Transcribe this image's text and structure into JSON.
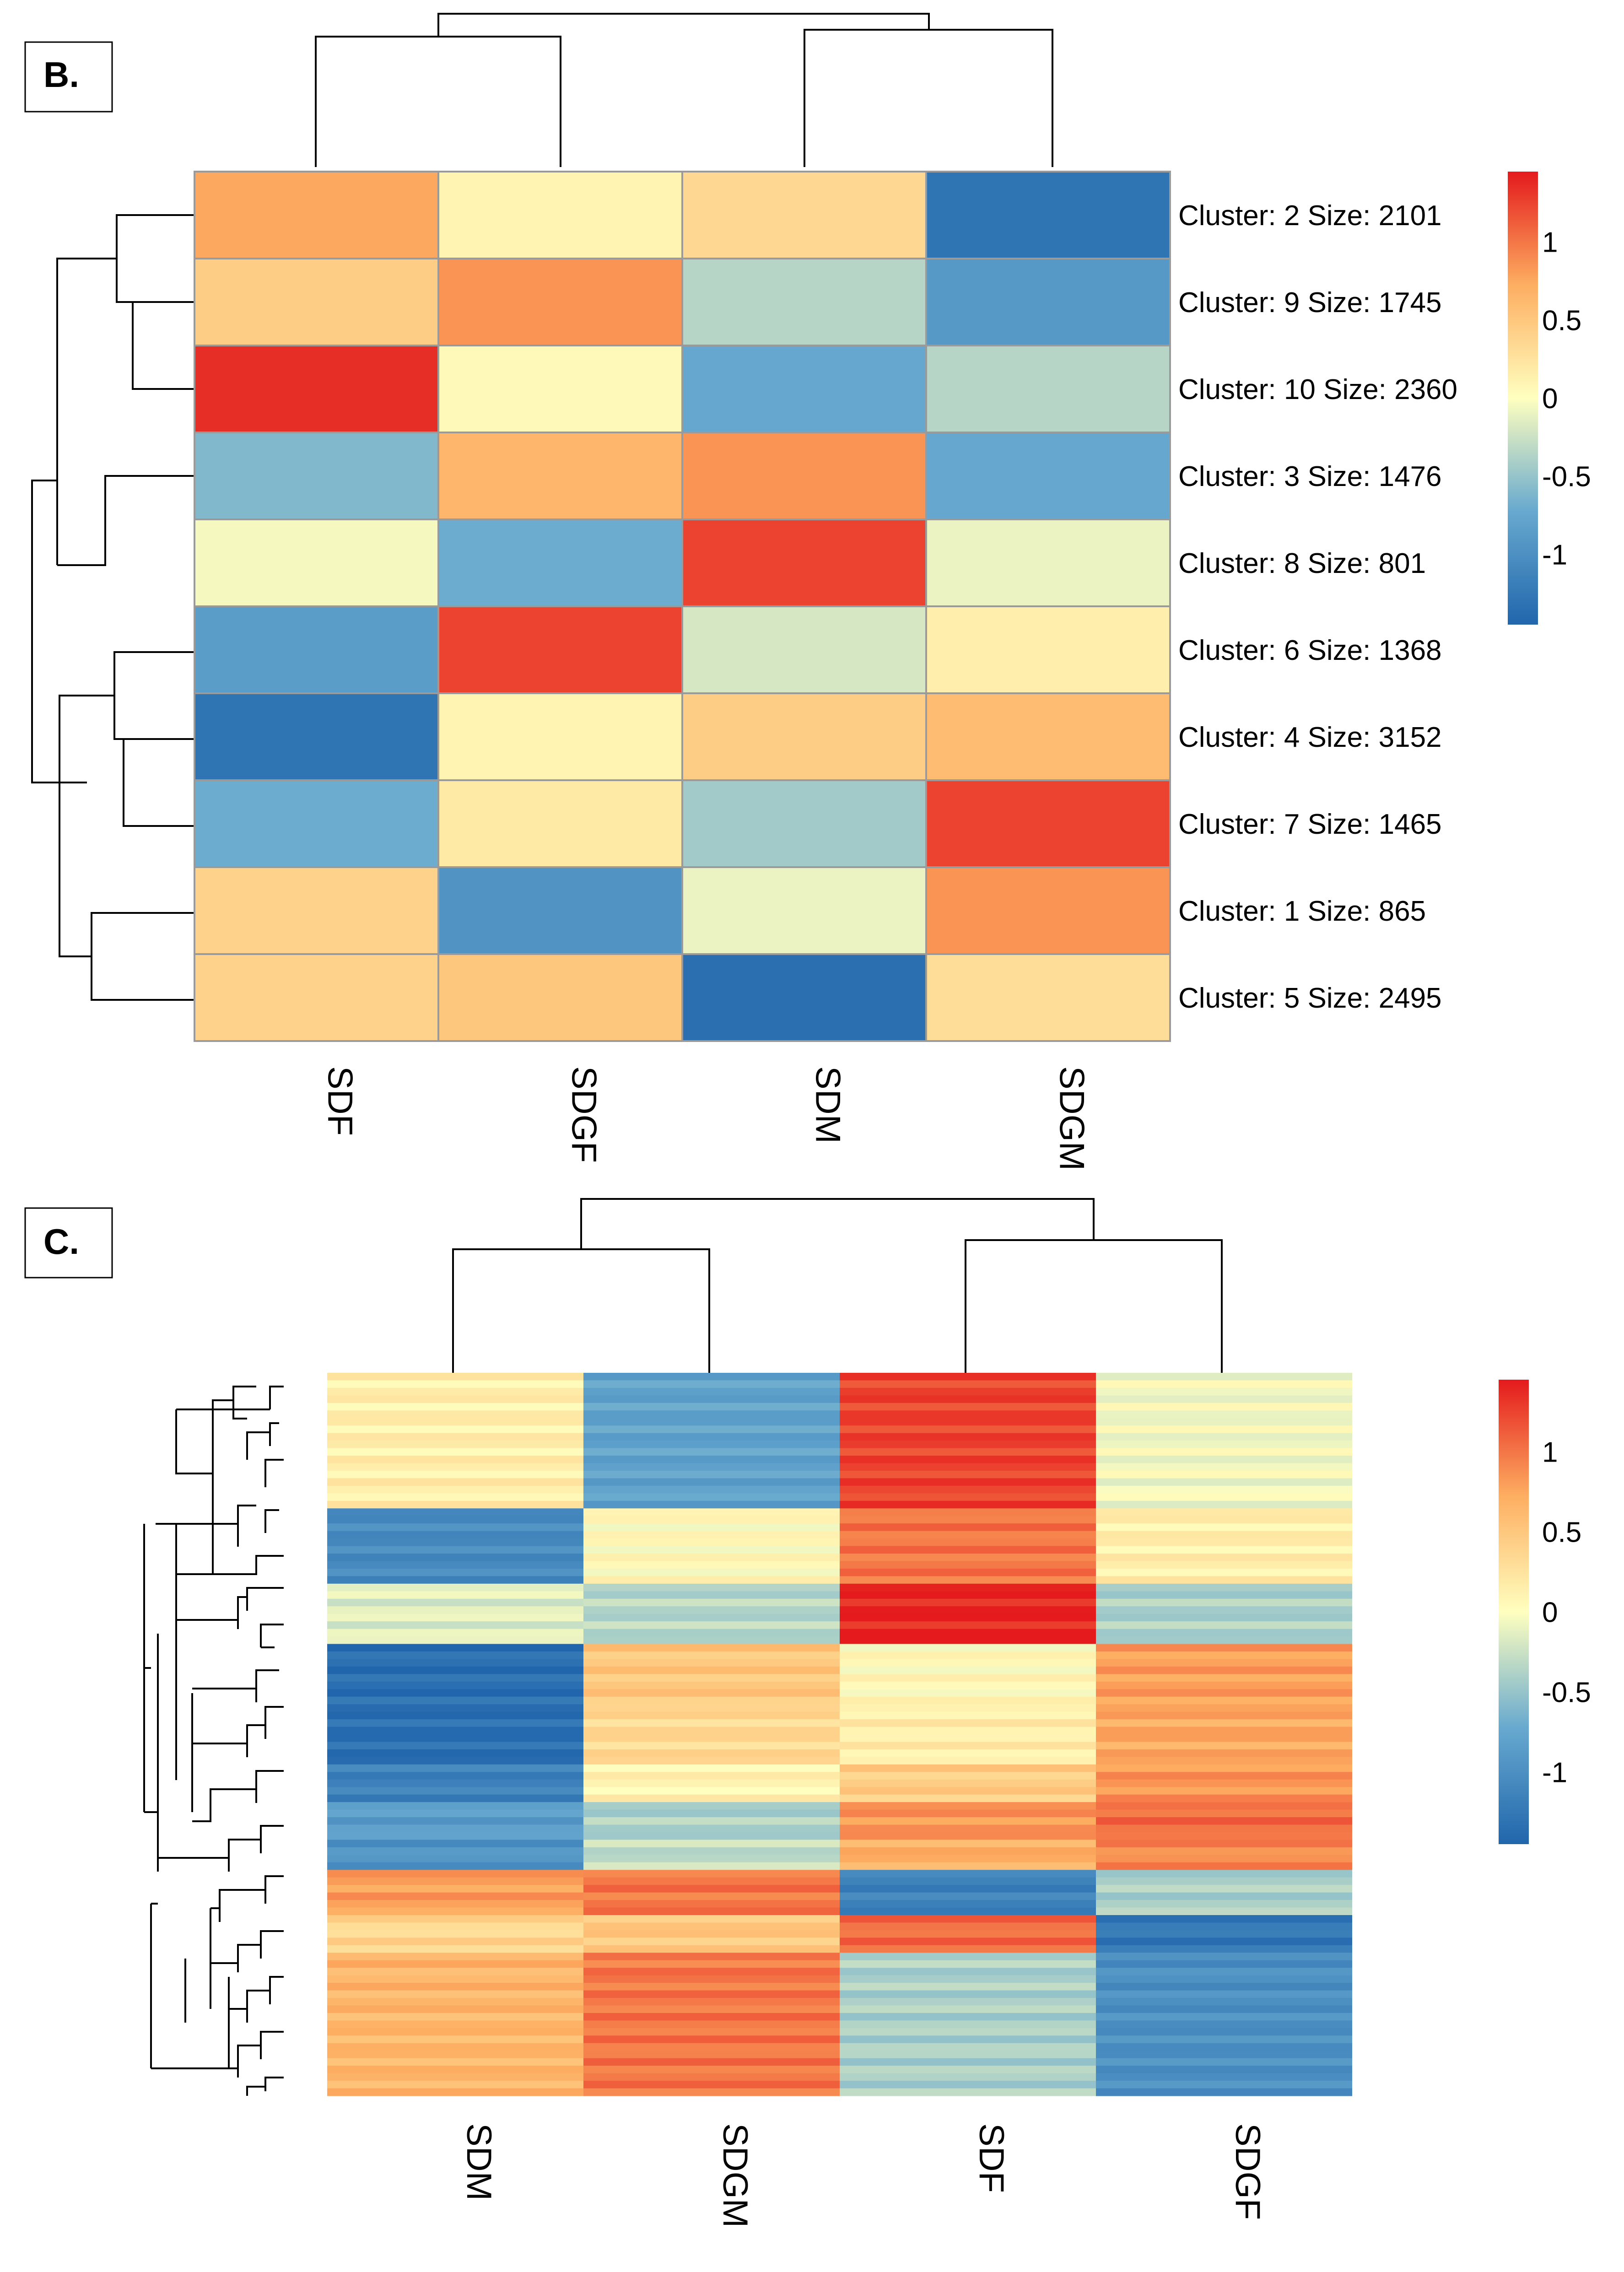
{
  "chart_data": [
    {
      "type": "heatmap",
      "panel_label": "B.",
      "columns": [
        "SDF",
        "SDGF",
        "SDM",
        "SDGM"
      ],
      "rows": [
        "Cluster: 2 Size: 2101",
        "Cluster: 9 Size: 1745",
        "Cluster: 10 Size: 2360",
        "Cluster: 3 Size: 1476",
        "Cluster: 8 Size: 801",
        "Cluster: 6 Size: 1368",
        "Cluster: 4 Size: 3152",
        "Cluster: 7 Size: 1465",
        "Cluster: 1 Size: 865",
        "Cluster: 5 Size: 2495"
      ],
      "values": [
        [
          0.75,
          0.1,
          0.35,
          -1.3
        ],
        [
          0.45,
          0.85,
          -0.35,
          -0.9
        ],
        [
          1.35,
          0.05,
          -0.75,
          -0.35
        ],
        [
          -0.6,
          0.65,
          0.85,
          -0.75
        ],
        [
          -0.05,
          -0.7,
          1.25,
          -0.1
        ],
        [
          -0.85,
          1.25,
          -0.2,
          0.15
        ],
        [
          -1.3,
          0.1,
          0.45,
          0.6
        ],
        [
          -0.7,
          0.2,
          -0.45,
          1.25
        ],
        [
          0.4,
          -0.95,
          -0.1,
          0.85
        ],
        [
          0.4,
          0.5,
          -1.35,
          0.3
        ]
      ],
      "legend": {
        "ticks": [
          "1",
          "0.5",
          "0",
          "-0.5",
          "-1"
        ],
        "range": [
          -1.45,
          1.45
        ]
      },
      "row_dendrogram": "hierarchical clustering of rows",
      "column_dendrogram": "hierarchical clustering of columns"
    },
    {
      "type": "heatmap",
      "panel_label": "C.",
      "columns": [
        "SDM",
        "SDGM",
        "SDF",
        "SDGF"
      ],
      "row_count": 96,
      "row_groups": [
        {
          "rows": 18,
          "values": [
            0.15,
            -0.8,
            1.25,
            -0.05
          ]
        },
        {
          "rows": 10,
          "values": [
            -1.05,
            0.05,
            1.0,
            0.15
          ]
        },
        {
          "rows": 8,
          "values": [
            -0.15,
            -0.35,
            1.4,
            -0.4
          ]
        },
        {
          "rows": 8,
          "values": [
            -1.35,
            0.5,
            0.05,
            0.8
          ]
        },
        {
          "rows": 8,
          "values": [
            -1.35,
            0.35,
            0.15,
            0.75
          ]
        },
        {
          "rows": 5,
          "values": [
            -1.15,
            0.1,
            0.45,
            0.85
          ]
        },
        {
          "rows": 5,
          "values": [
            -0.85,
            -0.4,
            0.85,
            1.05
          ]
        },
        {
          "rows": 4,
          "values": [
            -0.95,
            -0.3,
            0.7,
            0.9
          ]
        },
        {
          "rows": 6,
          "values": [
            0.8,
            1.0,
            -1.15,
            -0.4
          ]
        },
        {
          "rows": 5,
          "values": [
            0.35,
            0.5,
            1.05,
            -1.25
          ]
        },
        {
          "rows": 19,
          "values": [
            0.65,
            1.0,
            -0.4,
            -1.0
          ]
        }
      ],
      "legend": {
        "ticks": [
          "1",
          "0.5",
          "0",
          "-0.5",
          "-1"
        ],
        "range": [
          -1.45,
          1.45
        ]
      },
      "row_dendrogram": "hierarchical clustering of rows",
      "column_dendrogram": "hierarchical clustering of columns"
    }
  ]
}
